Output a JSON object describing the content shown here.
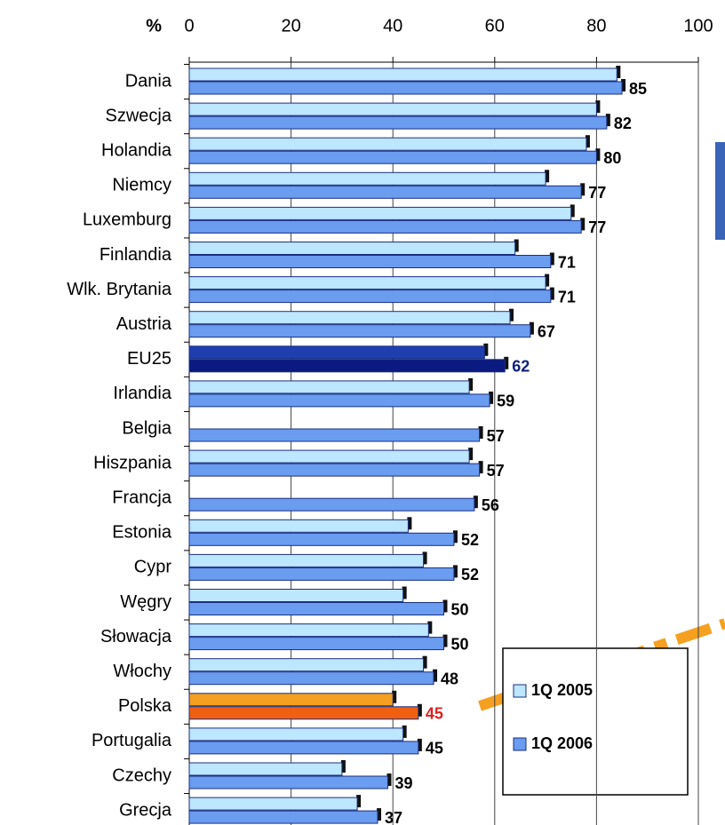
{
  "chart_data": {
    "type": "bar",
    "orientation": "horizontal",
    "axis_unit": "%",
    "categories": [
      "Dania",
      "Szwecja",
      "Holandia",
      "Niemcy",
      "Luxemburg",
      "Finlandia",
      "Wlk. Brytania",
      "Austria",
      "EU25",
      "Irlandia",
      "Belgia",
      "Hiszpania",
      "Francja",
      "Estonia",
      "Cypr",
      "Węgry",
      "Słowacja",
      "Włochy",
      "Polska",
      "Portugalia",
      "Czechy",
      "Grecja"
    ],
    "series": [
      {
        "name": "1Q 2005",
        "color": "#bde6ff",
        "values": [
          84,
          80,
          78,
          70,
          75,
          64,
          70,
          63,
          58,
          55,
          null,
          55,
          null,
          43,
          46,
          42,
          47,
          46,
          40,
          42,
          30,
          33
        ],
        "point_colors": [
          null,
          null,
          null,
          null,
          null,
          null,
          null,
          null,
          "#1f3fb0",
          null,
          null,
          null,
          null,
          null,
          null,
          null,
          null,
          null,
          "#f5a020",
          null,
          null,
          null
        ]
      },
      {
        "name": "1Q 2006",
        "color": "#6a9cf0",
        "values": [
          85,
          82,
          80,
          77,
          77,
          71,
          71,
          67,
          62,
          59,
          57,
          57,
          56,
          52,
          52,
          50,
          50,
          48,
          45,
          45,
          39,
          37
        ],
        "point_colors": [
          null,
          null,
          null,
          null,
          null,
          null,
          null,
          null,
          "#0a1a80",
          null,
          null,
          null,
          null,
          null,
          null,
          null,
          null,
          null,
          "#f06010",
          null,
          null,
          null
        ],
        "label_colors": [
          null,
          null,
          null,
          null,
          null,
          null,
          null,
          null,
          "#10207a",
          null,
          null,
          null,
          null,
          null,
          null,
          null,
          null,
          null,
          "#e02020",
          null,
          null,
          null
        ]
      }
    ],
    "xlim": [
      0,
      100
    ],
    "xticks": [
      0,
      20,
      40,
      60,
      80,
      100
    ],
    "grid": true,
    "legend": "bottom-right"
  }
}
